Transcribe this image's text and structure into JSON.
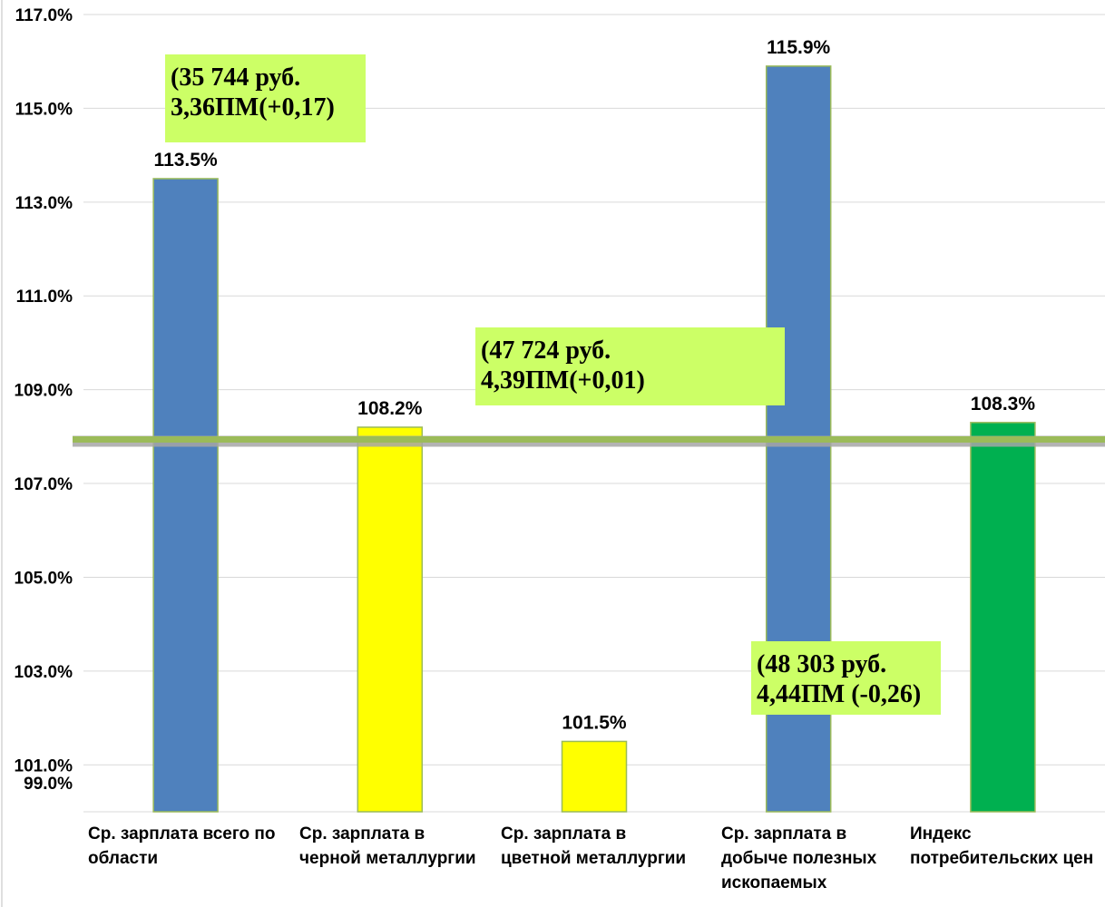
{
  "chart_data": {
    "type": "bar",
    "title": "",
    "xlabel": "",
    "ylabel": "",
    "ylim": [
      99.0,
      117.0
    ],
    "y_ticks": [
      "99.0%",
      "101.0%",
      "103.0%",
      "105.0%",
      "107.0%",
      "109.0%",
      "111.0%",
      "113.0%",
      "115.0%",
      "117.0%"
    ],
    "grid": true,
    "categories": [
      [
        "Ср. зарплата всего по",
        "области"
      ],
      [
        "Ср. зарплата в",
        "черной металлургии"
      ],
      [
        "Ср. зарплата в",
        "цветной металлургии"
      ],
      [
        "Ср. зарплата в",
        "добыче полезных",
        "ископаемых"
      ],
      [
        "Индекс",
        "потребительских цен"
      ]
    ],
    "values": [
      113.5,
      108.2,
      101.5,
      115.9,
      108.3
    ],
    "data_labels": [
      "113.5%",
      "108.2%",
      "101.5%",
      "115.9%",
      "108.3%"
    ],
    "bar_colors": [
      "#4f81bd",
      "#ffff00",
      "#ffff00",
      "#4f81bd",
      "#00b050"
    ],
    "bar_outline": "#9bbb59",
    "reference_line": {
      "value": 107.9,
      "color": "#9bbb59"
    },
    "annotations": [
      {
        "lines": [
          "(35 744 руб.",
          "3,36ПМ(+0,17)"
        ],
        "background": "#ccff66"
      },
      {
        "lines": [
          "(47 724 руб.",
          "4,39ПМ(+0,01)"
        ],
        "background": "#ccff66"
      },
      {
        "lines": [
          "(48 303 руб.",
          "4,44ПМ (-0,26)"
        ],
        "background": "#ccff66"
      }
    ]
  }
}
